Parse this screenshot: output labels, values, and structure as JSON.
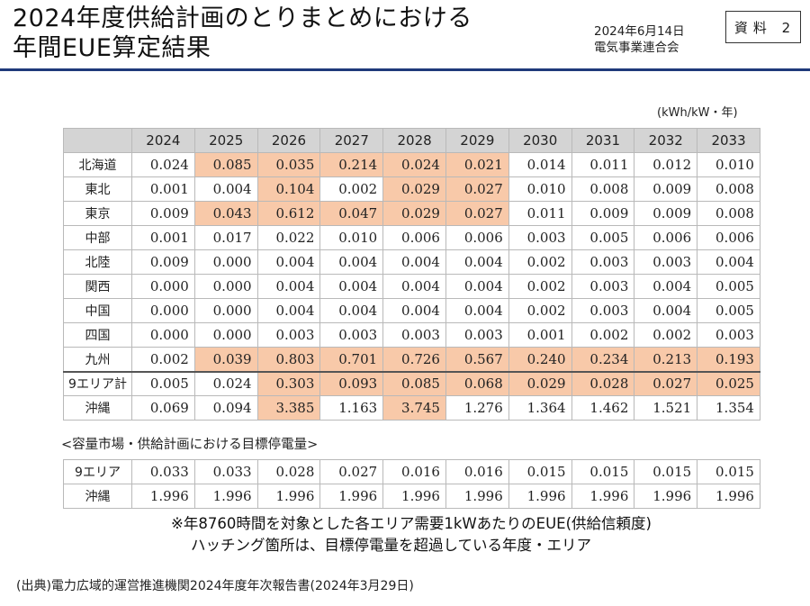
{
  "header": {
    "title_line1": "2024年度供給計画のとりまとめにおける",
    "title_line2": "年間EUE算定結果",
    "date": "2024年6月14日",
    "org": "電気事業連合会",
    "badge": "資料 2"
  },
  "unit": "(kWh/kW・年)",
  "years": [
    "2024",
    "2025",
    "2026",
    "2027",
    "2028",
    "2029",
    "2030",
    "2031",
    "2032",
    "2033"
  ],
  "main_rows": [
    {
      "area": "北海道",
      "values": [
        "0.024",
        "0.085",
        "0.035",
        "0.214",
        "0.024",
        "0.021",
        "0.014",
        "0.011",
        "0.012",
        "0.010"
      ],
      "highlight": [
        false,
        true,
        true,
        true,
        true,
        true,
        false,
        false,
        false,
        false
      ]
    },
    {
      "area": "東北",
      "values": [
        "0.001",
        "0.004",
        "0.104",
        "0.002",
        "0.029",
        "0.027",
        "0.010",
        "0.008",
        "0.009",
        "0.008"
      ],
      "highlight": [
        false,
        false,
        true,
        false,
        true,
        true,
        false,
        false,
        false,
        false
      ]
    },
    {
      "area": "東京",
      "values": [
        "0.009",
        "0.043",
        "0.612",
        "0.047",
        "0.029",
        "0.027",
        "0.011",
        "0.009",
        "0.009",
        "0.008"
      ],
      "highlight": [
        false,
        true,
        true,
        true,
        true,
        true,
        false,
        false,
        false,
        false
      ]
    },
    {
      "area": "中部",
      "values": [
        "0.001",
        "0.017",
        "0.022",
        "0.010",
        "0.006",
        "0.006",
        "0.003",
        "0.005",
        "0.006",
        "0.006"
      ],
      "highlight": [
        false,
        false,
        false,
        false,
        false,
        false,
        false,
        false,
        false,
        false
      ]
    },
    {
      "area": "北陸",
      "values": [
        "0.009",
        "0.000",
        "0.004",
        "0.004",
        "0.004",
        "0.004",
        "0.002",
        "0.003",
        "0.003",
        "0.004"
      ],
      "highlight": [
        false,
        false,
        false,
        false,
        false,
        false,
        false,
        false,
        false,
        false
      ]
    },
    {
      "area": "関西",
      "values": [
        "0.000",
        "0.000",
        "0.004",
        "0.004",
        "0.004",
        "0.004",
        "0.002",
        "0.003",
        "0.004",
        "0.005"
      ],
      "highlight": [
        false,
        false,
        false,
        false,
        false,
        false,
        false,
        false,
        false,
        false
      ]
    },
    {
      "area": "中国",
      "values": [
        "0.000",
        "0.000",
        "0.004",
        "0.004",
        "0.004",
        "0.004",
        "0.002",
        "0.003",
        "0.004",
        "0.005"
      ],
      "highlight": [
        false,
        false,
        false,
        false,
        false,
        false,
        false,
        false,
        false,
        false
      ]
    },
    {
      "area": "四国",
      "values": [
        "0.000",
        "0.000",
        "0.003",
        "0.003",
        "0.003",
        "0.003",
        "0.001",
        "0.002",
        "0.002",
        "0.003"
      ],
      "highlight": [
        false,
        false,
        false,
        false,
        false,
        false,
        false,
        false,
        false,
        false
      ]
    },
    {
      "area": "九州",
      "values": [
        "0.002",
        "0.039",
        "0.803",
        "0.701",
        "0.726",
        "0.567",
        "0.240",
        "0.234",
        "0.213",
        "0.193"
      ],
      "highlight": [
        false,
        true,
        true,
        true,
        true,
        true,
        true,
        true,
        true,
        true
      ]
    },
    {
      "area": "9エリア計",
      "values": [
        "0.005",
        "0.024",
        "0.303",
        "0.093",
        "0.085",
        "0.068",
        "0.029",
        "0.028",
        "0.027",
        "0.025"
      ],
      "highlight": [
        false,
        false,
        true,
        true,
        true,
        true,
        true,
        true,
        true,
        true
      ],
      "thick": true
    },
    {
      "area": "沖縄",
      "values": [
        "0.069",
        "0.094",
        "3.385",
        "1.163",
        "3.745",
        "1.276",
        "1.364",
        "1.462",
        "1.521",
        "1.354"
      ],
      "highlight": [
        false,
        false,
        true,
        false,
        true,
        false,
        false,
        false,
        false,
        false
      ]
    }
  ],
  "subsection_title": "<容量市場・供給計画における目標停電量>",
  "sub_rows": [
    {
      "area": "9エリア",
      "values": [
        "0.033",
        "0.033",
        "0.028",
        "0.027",
        "0.016",
        "0.016",
        "0.015",
        "0.015",
        "0.015",
        "0.015"
      ]
    },
    {
      "area": "沖縄",
      "values": [
        "1.996",
        "1.996",
        "1.996",
        "1.996",
        "1.996",
        "1.996",
        "1.996",
        "1.996",
        "1.996",
        "1.996"
      ]
    }
  ],
  "notes": {
    "line1": "※年8760時間を対象とした各エリア需要1kWあたりのEUE(供給信頼度)",
    "line2": "ハッチング箇所は、目標停電量を超過している年度・エリア"
  },
  "source": "(出典)電力広域的運営推進機関2024年度年次報告書(2024年3月29日)",
  "colors": {
    "highlight": "#f8c9a9",
    "header_bg": "#d4d4d4",
    "rule": "#1f3a7a"
  }
}
